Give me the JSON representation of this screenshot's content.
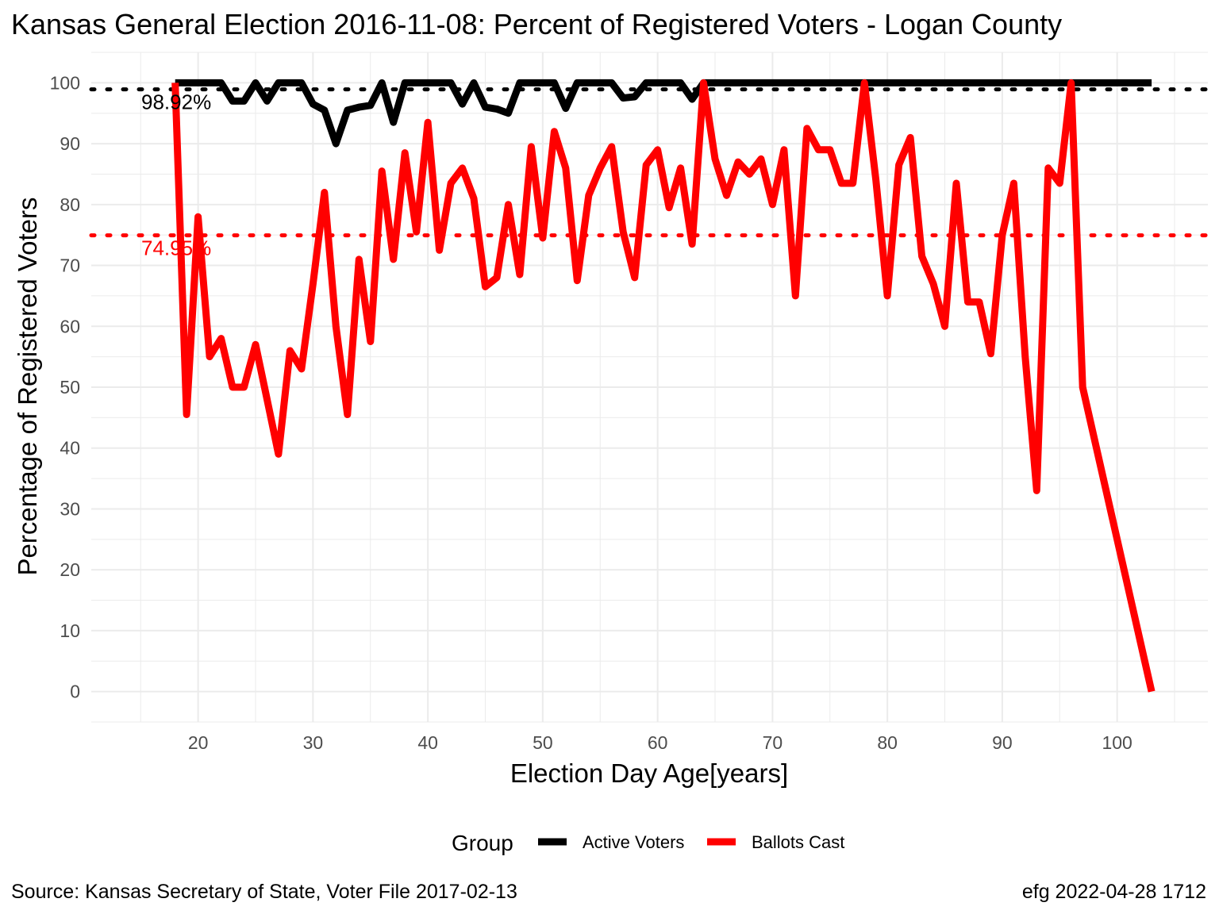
{
  "chart_data": {
    "type": "line",
    "title": "Kansas General Election 2016-11-08:  Percent of Registered Voters - Logan County",
    "xlabel": "Election Day Age[years]",
    "ylabel": "Percentage of Registered Voters",
    "xlim": [
      10.7,
      107.9
    ],
    "ylim": [
      -5,
      105
    ],
    "x_ticks": [
      20,
      30,
      40,
      50,
      60,
      70,
      80,
      90,
      100
    ],
    "y_ticks": [
      0,
      10,
      20,
      30,
      40,
      50,
      60,
      70,
      80,
      90,
      100
    ],
    "grid": true,
    "legend": {
      "title": "Group",
      "position": "bottom",
      "entries": [
        {
          "label": "Active Voters",
          "color": "#000000"
        },
        {
          "label": "Ballots Cast",
          "color": "#ff0000"
        }
      ]
    },
    "reference_lines": [
      {
        "value": 98.92,
        "label": "98.92%",
        "color": "#000000"
      },
      {
        "value": 74.95,
        "label": "74.95%",
        "color": "#ff0000"
      }
    ],
    "series": [
      {
        "name": "Active Voters",
        "color": "#000000",
        "x": [
          18,
          19,
          20,
          21,
          22,
          23,
          24,
          25,
          26,
          27,
          28,
          29,
          30,
          31,
          32,
          33,
          34,
          35,
          36,
          37,
          38,
          39,
          40,
          41,
          42,
          43,
          44,
          45,
          46,
          47,
          48,
          49,
          50,
          51,
          52,
          53,
          54,
          55,
          56,
          57,
          58,
          59,
          60,
          61,
          62,
          63,
          64,
          65,
          66,
          67,
          68,
          69,
          70,
          71,
          72,
          73,
          74,
          75,
          76,
          77,
          78,
          79,
          80,
          81,
          82,
          83,
          84,
          85,
          86,
          87,
          88,
          89,
          90,
          91,
          92,
          93,
          94,
          95,
          96,
          97,
          98,
          99,
          100,
          101,
          102,
          103
        ],
        "y": [
          100,
          100,
          100,
          100,
          100,
          97,
          97,
          100,
          97,
          100,
          100,
          100,
          96.5,
          95.5,
          90,
          95.5,
          96,
          96.3,
          100,
          93.5,
          100,
          100,
          100,
          100,
          100,
          96.5,
          100,
          96,
          95.7,
          95,
          100,
          100,
          100,
          100,
          95.8,
          100,
          100,
          100,
          100,
          97.5,
          97.7,
          100,
          100,
          100,
          100,
          97.3,
          100,
          100,
          100,
          100,
          100,
          100,
          100,
          100,
          100,
          100,
          100,
          100,
          100,
          100,
          100,
          100,
          100,
          100,
          100,
          100,
          100,
          100,
          100,
          100,
          100,
          100,
          100,
          100,
          100,
          100,
          100,
          100,
          100,
          100,
          100,
          100,
          100,
          100,
          100,
          100
        ]
      },
      {
        "name": "Ballots Cast",
        "color": "#ff0000",
        "x": [
          18,
          19,
          20,
          21,
          22,
          23,
          24,
          25,
          26,
          27,
          28,
          29,
          30,
          31,
          32,
          33,
          34,
          35,
          36,
          37,
          38,
          39,
          40,
          41,
          42,
          43,
          44,
          45,
          46,
          47,
          48,
          49,
          50,
          51,
          52,
          53,
          54,
          55,
          56,
          57,
          58,
          59,
          60,
          61,
          62,
          63,
          64,
          65,
          66,
          67,
          68,
          69,
          70,
          71,
          72,
          73,
          74,
          75,
          76,
          77,
          78,
          79,
          80,
          81,
          82,
          83,
          84,
          85,
          86,
          87,
          88,
          89,
          90,
          91,
          92,
          93,
          94,
          95,
          96,
          97,
          103
        ],
        "y": [
          100,
          45.5,
          78,
          55,
          58,
          50,
          50,
          57,
          48,
          39,
          56,
          53,
          67,
          82,
          60,
          45.5,
          71,
          57.5,
          85.5,
          71,
          88.5,
          75.5,
          93.5,
          72.5,
          83.5,
          86,
          81,
          66.5,
          68,
          80,
          68.5,
          89.5,
          74.5,
          92,
          86,
          67.5,
          81.5,
          86,
          89.5,
          75.5,
          68,
          86.5,
          89,
          79.5,
          86,
          73.5,
          100,
          87.5,
          81.5,
          87,
          85,
          87.5,
          80,
          89,
          65,
          92.5,
          89,
          89,
          83.5,
          83.5,
          100,
          84,
          65,
          86.5,
          91,
          71.5,
          67,
          60,
          83.5,
          64,
          64,
          55.5,
          75,
          83.5,
          55,
          33,
          86,
          83.5,
          100,
          50,
          0
        ]
      }
    ]
  },
  "source_caption": "Source:  Kansas Secretary of State, Voter File  2017-02-13",
  "credit_caption": "efg 2022-04-28 1712"
}
